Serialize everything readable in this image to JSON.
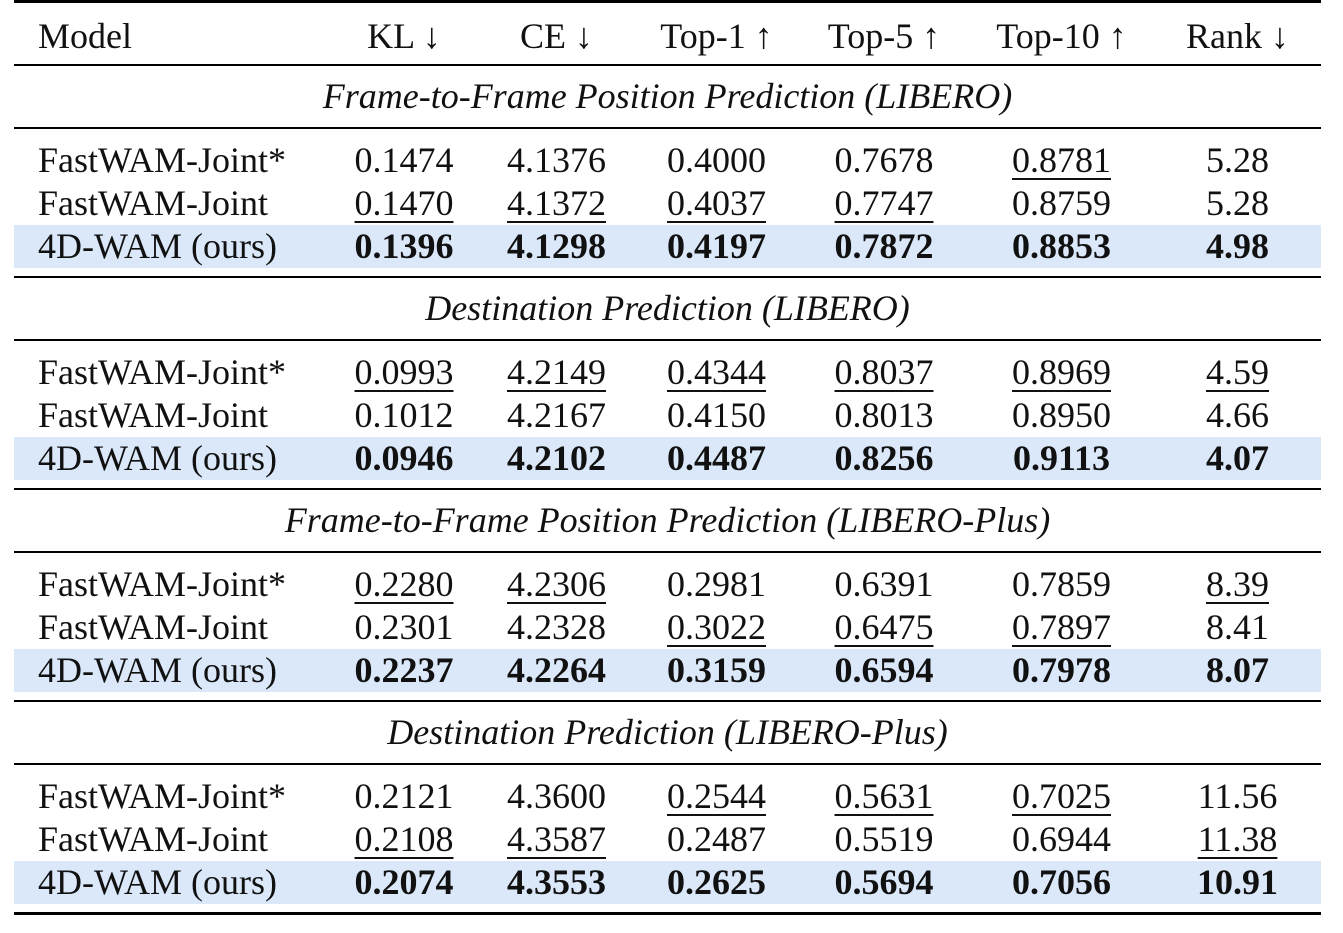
{
  "header": {
    "model": "Model",
    "columns": [
      "KL ↓",
      "CE ↓",
      "Top-1 ↑",
      "Top-5 ↑",
      "Top-10 ↑",
      "Rank ↓"
    ]
  },
  "sections": [
    {
      "title": "Frame-to-Frame Position Prediction (LIBERO)",
      "rows": [
        {
          "model": "FastWAM-Joint*",
          "values": [
            "0.1474",
            "4.1376",
            "0.4000",
            "0.7678",
            "0.8781",
            "5.28"
          ],
          "emphasis": [
            "",
            "",
            "",
            "",
            "second",
            ""
          ]
        },
        {
          "model": "FastWAM-Joint",
          "values": [
            "0.1470",
            "4.1372",
            "0.4037",
            "0.7747",
            "0.8759",
            "5.28"
          ],
          "emphasis": [
            "second",
            "second",
            "second",
            "second",
            "",
            ""
          ]
        },
        {
          "model": "4D-WAM (ours)",
          "values": [
            "0.1396",
            "4.1298",
            "0.4197",
            "0.7872",
            "0.8853",
            "4.98"
          ],
          "emphasis": [
            "best",
            "best",
            "best",
            "best",
            "best",
            "best"
          ]
        }
      ]
    },
    {
      "title": "Destination Prediction (LIBERO)",
      "rows": [
        {
          "model": "FastWAM-Joint*",
          "values": [
            "0.0993",
            "4.2149",
            "0.4344",
            "0.8037",
            "0.8969",
            "4.59"
          ],
          "emphasis": [
            "second",
            "second",
            "second",
            "second",
            "second",
            "second"
          ]
        },
        {
          "model": "FastWAM-Joint",
          "values": [
            "0.1012",
            "4.2167",
            "0.4150",
            "0.8013",
            "0.8950",
            "4.66"
          ],
          "emphasis": [
            "",
            "",
            "",
            "",
            "",
            ""
          ]
        },
        {
          "model": "4D-WAM (ours)",
          "values": [
            "0.0946",
            "4.2102",
            "0.4487",
            "0.8256",
            "0.9113",
            "4.07"
          ],
          "emphasis": [
            "best",
            "best",
            "best",
            "best",
            "best",
            "best"
          ]
        }
      ]
    },
    {
      "title": "Frame-to-Frame Position Prediction (LIBERO-Plus)",
      "rows": [
        {
          "model": "FastWAM-Joint*",
          "values": [
            "0.2280",
            "4.2306",
            "0.2981",
            "0.6391",
            "0.7859",
            "8.39"
          ],
          "emphasis": [
            "second",
            "second",
            "",
            "",
            "",
            "second"
          ]
        },
        {
          "model": "FastWAM-Joint",
          "values": [
            "0.2301",
            "4.2328",
            "0.3022",
            "0.6475",
            "0.7897",
            "8.41"
          ],
          "emphasis": [
            "",
            "",
            "second",
            "second",
            "second",
            ""
          ]
        },
        {
          "model": "4D-WAM (ours)",
          "values": [
            "0.2237",
            "4.2264",
            "0.3159",
            "0.6594",
            "0.7978",
            "8.07"
          ],
          "emphasis": [
            "best",
            "best",
            "best",
            "best",
            "best",
            "best"
          ]
        }
      ]
    },
    {
      "title": "Destination Prediction (LIBERO-Plus)",
      "rows": [
        {
          "model": "FastWAM-Joint*",
          "values": [
            "0.2121",
            "4.3600",
            "0.2544",
            "0.5631",
            "0.7025",
            "11.56"
          ],
          "emphasis": [
            "",
            "",
            "second",
            "second",
            "second",
            ""
          ]
        },
        {
          "model": "FastWAM-Joint",
          "values": [
            "0.2108",
            "4.3587",
            "0.2487",
            "0.5519",
            "0.6944",
            "11.38"
          ],
          "emphasis": [
            "second",
            "second",
            "",
            "",
            "",
            "second"
          ]
        },
        {
          "model": "4D-WAM (ours)",
          "values": [
            "0.2074",
            "4.3553",
            "0.2625",
            "0.5694",
            "0.7056",
            "10.91"
          ],
          "emphasis": [
            "best",
            "best",
            "best",
            "best",
            "best",
            "best"
          ]
        }
      ]
    }
  ],
  "colors": {
    "highlight_row": "#dbe8fa",
    "rule": "#000000",
    "text": "#111111"
  }
}
